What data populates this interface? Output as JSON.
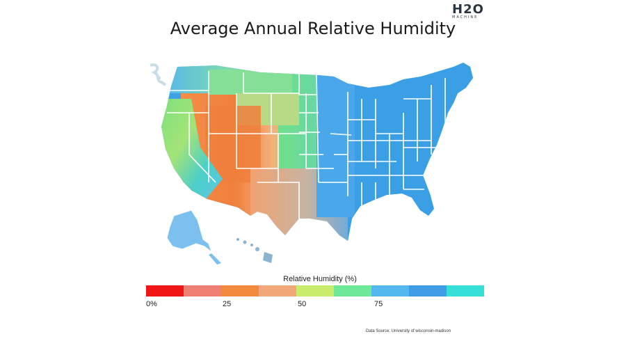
{
  "logo": {
    "mark": "H2O",
    "sub": "MACHINE"
  },
  "title": "Average Annual Relative Humidity",
  "map": {
    "colors": {
      "dry": "#f07f3c",
      "semi_dry": "#f3a270",
      "mid": "#6fe08a",
      "humid": "#4aa8ea",
      "very_humid": "#3aa0e6"
    }
  },
  "legend": {
    "title": "Relative Humidity (%)",
    "swatches": [
      "#f01616",
      "#ee7f72",
      "#f28a3e",
      "#f3a87a",
      "#c9ec6c",
      "#6fe89a",
      "#53b8ee",
      "#3e9de4",
      "#36e0d8"
    ],
    "ticks": [
      "0%",
      "25",
      "50",
      "75"
    ]
  },
  "source": "Data Source:  University of wisconsin-madison"
}
